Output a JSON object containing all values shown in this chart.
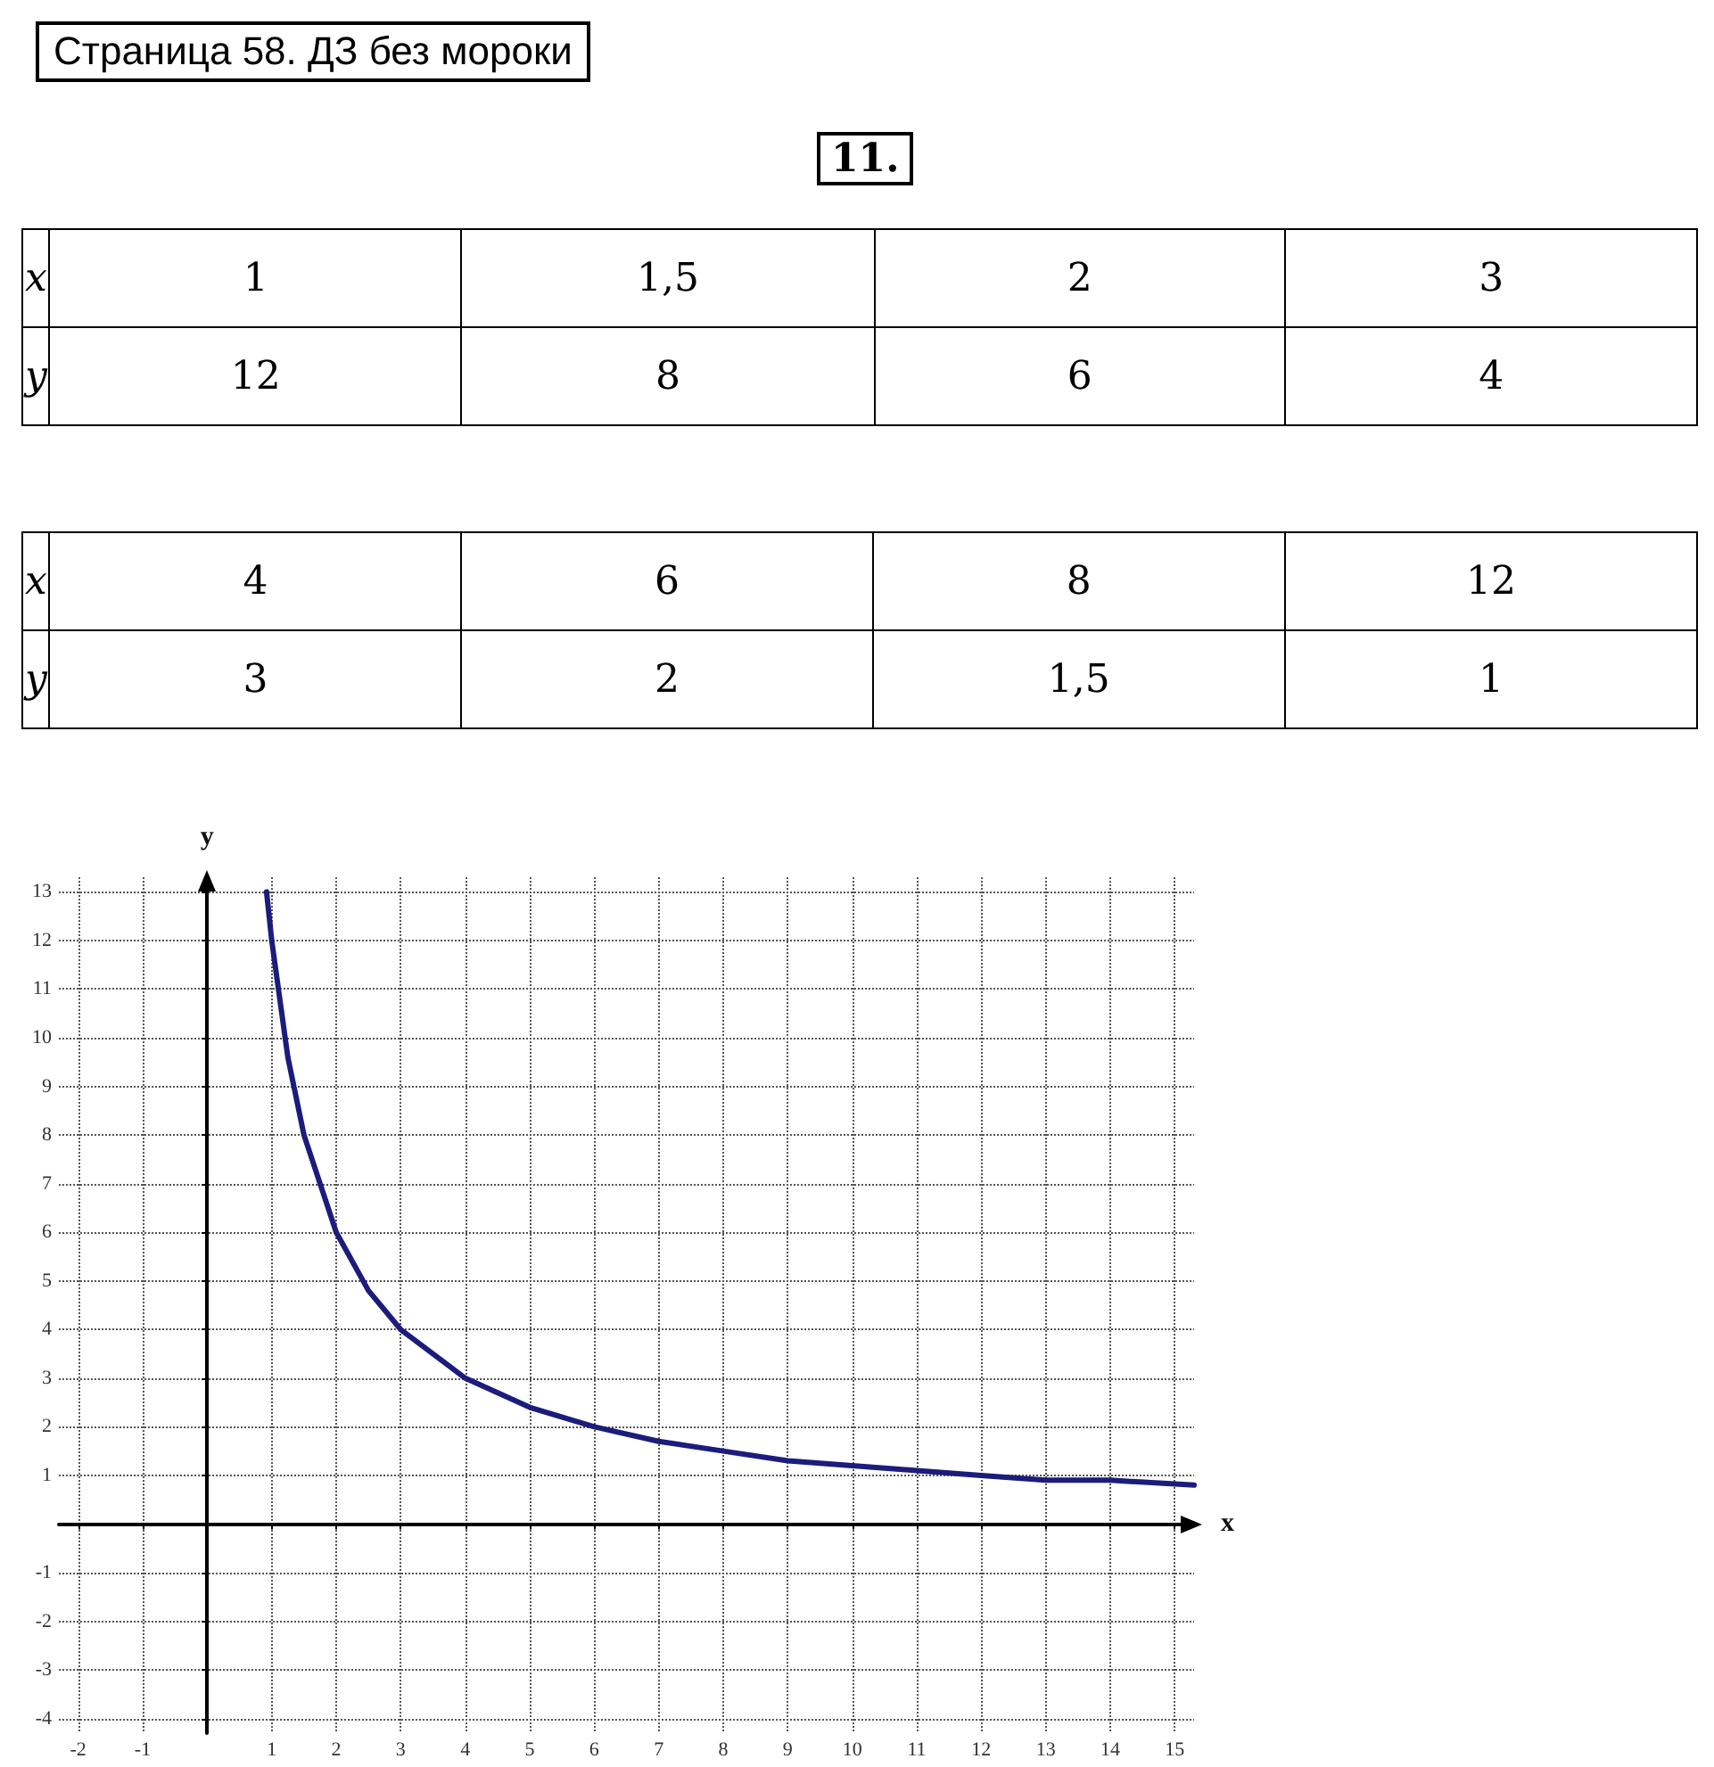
{
  "chart_data": {
    "type": "line",
    "title": "11.",
    "subtitle": "Страница 58. ДЗ без мороки",
    "xlabel": "x",
    "ylabel": "y",
    "series": [
      {
        "color": "#1c1c7c",
        "x": [
          0.92,
          1,
          1.25,
          1.5,
          2,
          2.5,
          3,
          4,
          5,
          6,
          7,
          8,
          9,
          10,
          11,
          12,
          13,
          14,
          15.3
        ],
        "values": [
          13,
          12,
          9.6,
          8,
          6,
          4.8,
          4,
          3,
          2.4,
          2,
          1.7,
          1.5,
          1.3,
          1.2,
          1.1,
          1,
          0.9,
          0.9,
          0.8
        ]
      }
    ],
    "annotations": [
      "x",
      "1",
      "1,5",
      "2",
      "3",
      "y",
      "12",
      "8",
      "6",
      "4",
      "x",
      "4",
      "6",
      "8",
      "12",
      "y",
      "3",
      "2",
      "1,5",
      "1"
    ],
    "xlim": [
      -2.3,
      15.3
    ],
    "ylim": [
      -4.3,
      13.3
    ],
    "xticks": [
      -2,
      -1,
      1,
      2,
      3,
      4,
      5,
      6,
      7,
      8,
      9,
      10,
      11,
      12,
      13,
      14,
      15
    ],
    "yticks": [
      -4,
      -3,
      -2,
      -1,
      1,
      2,
      3,
      4,
      5,
      6,
      7,
      8,
      9,
      10,
      11,
      12,
      13
    ],
    "grid": true,
    "marker": "none",
    "line_style": "solid"
  }
}
